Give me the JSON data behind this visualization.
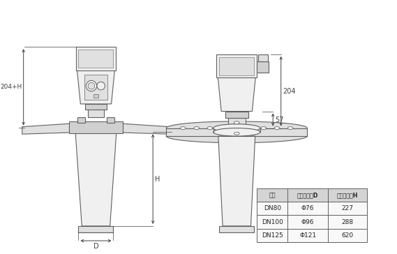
{
  "bg_color": "#ffffff",
  "line_color": "#606060",
  "line_width": 0.8,
  "dim_color": "#404040",
  "fill_light": "#f0f0f0",
  "fill_mid": "#e0e0e0",
  "fill_dark": "#d0d0d0",
  "table_data": [
    [
      "法兰",
      "喇叭口直径D",
      "喇叭口高度H"
    ],
    [
      "DN80",
      "Φ76",
      "227"
    ],
    [
      "DN100",
      "Φ96",
      "288"
    ],
    [
      "DN125",
      "Φ121",
      "620"
    ]
  ],
  "dim_label_204H": "204+H",
  "dim_label_H": "H",
  "dim_label_D": "D",
  "dim_label_204": "204",
  "dim_label_57": "57"
}
